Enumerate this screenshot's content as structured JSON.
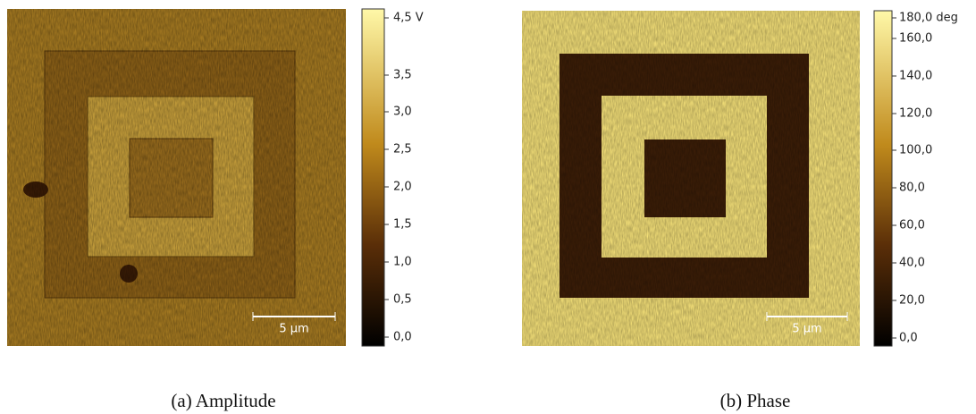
{
  "panels": [
    {
      "colorbar_labels": [
        "4,5 V",
        "3,5",
        "3,0",
        "2,5",
        "2,0",
        "1,5",
        "1,0",
        "0,5",
        "0,0"
      ],
      "scale_bar": "5 µm",
      "caption": "(a) Amplitude"
    },
    {
      "colorbar_labels": [
        "180,0 deg",
        "160,0",
        "140,0",
        "120,0",
        "100,0",
        "80,0",
        "60,0",
        "40,0",
        "20,0",
        "0,0"
      ],
      "scale_bar": "5 µm",
      "caption": "(b) Phase"
    }
  ]
}
